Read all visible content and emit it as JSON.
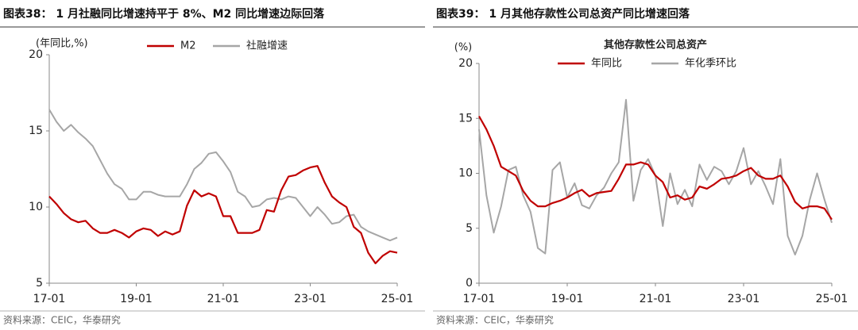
{
  "chart_data": [
    {
      "type": "line",
      "title": "图表38： 1 月社融同比增速持平于 8%、M2 同比增速边际回落",
      "y_label": "(年同比,%)",
      "source": "资料来源：CEIC，华泰研究",
      "legend": "top",
      "grid": false,
      "categories": [
        "17-01",
        null,
        null,
        null,
        null,
        null,
        null,
        null,
        null,
        null,
        null,
        null,
        "19-01",
        null,
        null,
        null,
        null,
        null,
        null,
        null,
        null,
        null,
        null,
        null,
        "21-01",
        null,
        null,
        null,
        null,
        null,
        null,
        null,
        null,
        null,
        null,
        null,
        "23-01",
        null,
        null,
        null,
        null,
        null,
        null,
        null,
        null,
        null,
        null,
        null,
        "25-01"
      ],
      "ylim": [
        5,
        20
      ],
      "yticks": [
        5,
        10,
        15,
        20
      ],
      "series": [
        {
          "name": "M2",
          "color": "#c00000",
          "values": [
            10.7,
            10.2,
            9.6,
            9.2,
            9.0,
            9.1,
            8.6,
            8.3,
            8.3,
            8.5,
            8.3,
            8.0,
            8.4,
            8.6,
            8.5,
            8.1,
            8.4,
            8.2,
            8.4,
            10.1,
            11.1,
            10.7,
            10.9,
            10.7,
            9.4,
            9.4,
            8.3,
            8.3,
            8.3,
            8.5,
            9.8,
            9.7,
            11.1,
            12.0,
            12.1,
            12.4,
            12.6,
            12.7,
            11.6,
            10.7,
            10.3,
            10.0,
            8.7,
            8.3,
            7.0,
            6.3,
            6.8,
            7.1,
            7.0
          ]
        },
        {
          "name": "社融增速",
          "color": "#a6a6a6",
          "values": [
            16.4,
            15.6,
            15.0,
            15.4,
            14.9,
            14.5,
            14.0,
            13.1,
            12.2,
            11.5,
            11.2,
            10.5,
            10.5,
            11.0,
            11.0,
            10.8,
            10.7,
            10.7,
            10.7,
            11.5,
            12.5,
            12.9,
            13.5,
            13.6,
            13.0,
            12.3,
            11.0,
            10.7,
            10.0,
            10.1,
            10.5,
            10.6,
            10.5,
            10.7,
            10.6,
            10.0,
            9.4,
            10.0,
            9.5,
            8.9,
            9.0,
            9.4,
            9.5,
            8.7,
            8.4,
            8.2,
            8.0,
            7.8,
            8.0
          ]
        }
      ]
    },
    {
      "type": "line",
      "title": "图表39： 1 月其他存款性公司总资产同比增速回落",
      "subtitle": "其他存款性公司总资产",
      "y_label": "(%)",
      "source": "资料来源：CEIC，华泰研究",
      "legend": "top",
      "grid": false,
      "categories": [
        "17-01",
        null,
        null,
        null,
        null,
        null,
        null,
        null,
        null,
        null,
        null,
        null,
        "19-01",
        null,
        null,
        null,
        null,
        null,
        null,
        null,
        null,
        null,
        null,
        null,
        "21-01",
        null,
        null,
        null,
        null,
        null,
        null,
        null,
        null,
        null,
        null,
        null,
        "23-01",
        null,
        null,
        null,
        null,
        null,
        null,
        null,
        null,
        null,
        null,
        null,
        "25-01"
      ],
      "ylim": [
        0,
        20
      ],
      "yticks": [
        0,
        5,
        10,
        15,
        20
      ],
      "series": [
        {
          "name": "年同比",
          "color": "#c00000",
          "values": [
            15.2,
            14.0,
            12.5,
            10.6,
            10.2,
            9.8,
            8.4,
            7.5,
            7.0,
            7.0,
            7.3,
            7.5,
            7.8,
            8.2,
            8.5,
            7.9,
            8.2,
            8.3,
            8.4,
            9.5,
            10.8,
            10.8,
            11.0,
            10.8,
            9.8,
            9.2,
            7.8,
            8.0,
            7.6,
            7.8,
            8.8,
            8.6,
            9.0,
            9.5,
            9.6,
            9.8,
            10.2,
            10.5,
            9.8,
            9.5,
            9.5,
            9.8,
            8.8,
            7.4,
            6.8,
            7.0,
            7.0,
            6.8,
            5.8
          ]
        },
        {
          "name": "年化季环比",
          "color": "#a6a6a6",
          "values": [
            14.0,
            8.0,
            4.6,
            7.0,
            10.3,
            10.6,
            8.0,
            6.5,
            3.2,
            2.7,
            10.3,
            11.0,
            7.8,
            9.1,
            7.1,
            6.8,
            8.0,
            8.7,
            10.0,
            11.0,
            16.7,
            7.5,
            10.3,
            11.3,
            9.8,
            5.2,
            10.0,
            7.2,
            8.5,
            7.0,
            10.8,
            9.4,
            10.6,
            10.2,
            9.0,
            10.2,
            12.3,
            9.0,
            10.2,
            8.8,
            7.2,
            11.3,
            4.3,
            2.6,
            4.3,
            7.6,
            10.0,
            7.6,
            5.5
          ]
        }
      ]
    }
  ]
}
